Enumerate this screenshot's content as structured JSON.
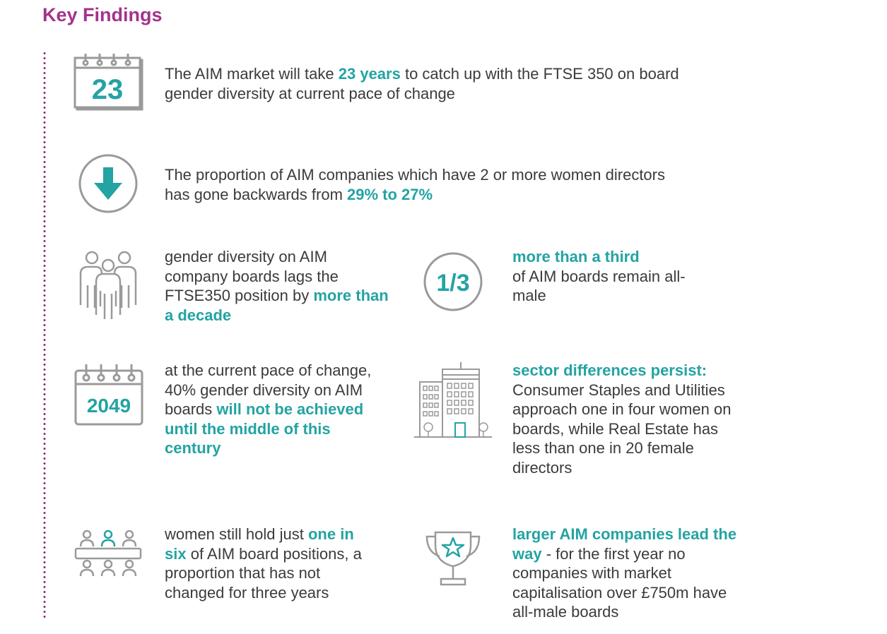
{
  "title": "Key Findings",
  "findings": {
    "f1": {
      "icon": "calendar-icon",
      "icon_number": "23",
      "before": "The AIM market will take ",
      "highlight": "23 years",
      "after": " to catch up with the FTSE 350 on board gender diversity at current pace of change"
    },
    "f2": {
      "icon": "down-arrow-icon",
      "before": "The proportion of AIM companies which have 2 or more women directors has gone backwards from ",
      "highlight": "29% to 27%"
    },
    "f3": {
      "icon": "people-group-icon",
      "before": "gender diversity on AIM company boards lags the FTSE350 position by ",
      "highlight": "more than a decade"
    },
    "f4": {
      "icon": "one-third-icon",
      "icon_text": "1/3",
      "highlight": "more than a third",
      "after": "of AIM boards remain all-male"
    },
    "f5": {
      "icon": "calendar-icon",
      "icon_number": "2049",
      "before": "at the current pace of change, 40% gender diversity on AIM boards ",
      "highlight": "will not be achieved until the middle of this century"
    },
    "f6": {
      "icon": "buildings-icon",
      "highlight": "sector differences persist:",
      "after": " Consumer Staples and Utilities approach one in four women on boards, while Real Estate has less than one in 20 female directors"
    },
    "f7": {
      "icon": "boardroom-icon",
      "before": "women still hold just ",
      "highlight": "one in six",
      "after": " of AIM board positions, a proportion that has not changed for three years"
    },
    "f8": {
      "icon": "trophy-icon",
      "highlight": "larger AIM companies lead the way",
      "after": " - for the first year no companies with market capitalisation over £750m have all-male boards"
    }
  },
  "colors": {
    "title": "#a2338c",
    "accent": "#24a3a3",
    "icon_grey": "#9a9a9a",
    "text": "#3b3b3b"
  }
}
